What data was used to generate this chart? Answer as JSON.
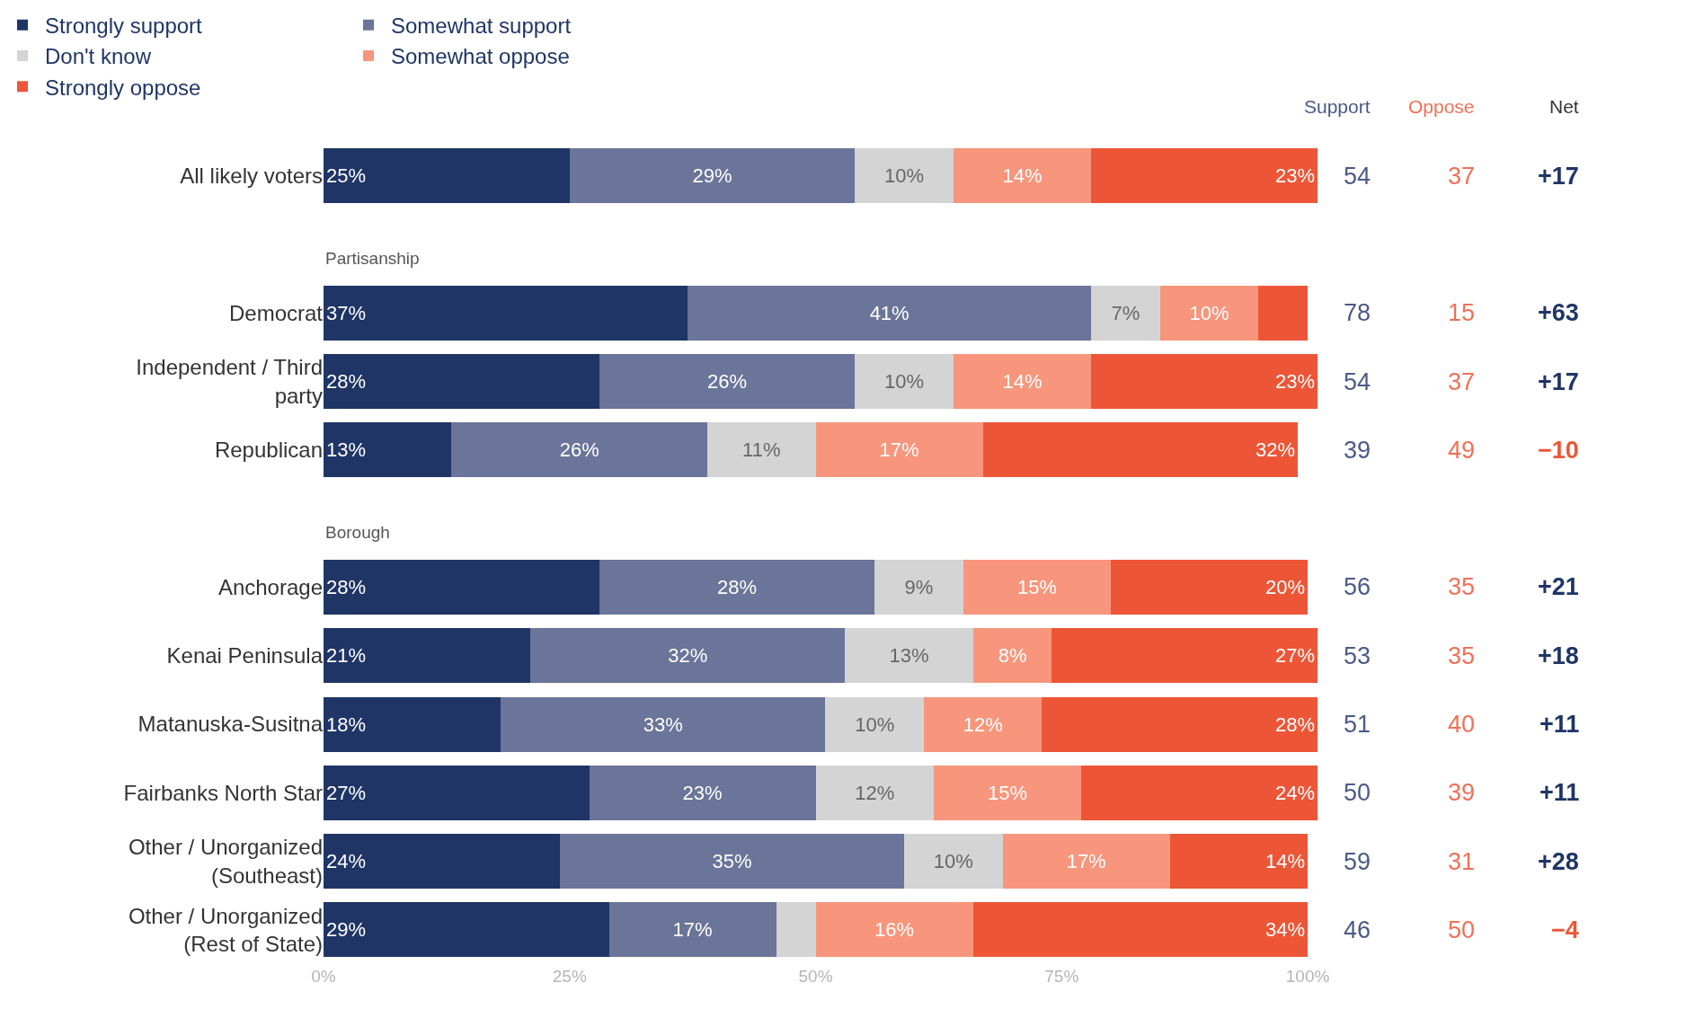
{
  "chart_data": {
    "type": "bar",
    "orientation": "horizontal",
    "stacked": true,
    "legend": "top",
    "categories": [
      "All likely voters",
      "Partisanship",
      "Democrat",
      "Independent / Third party",
      "Republican",
      "Borough",
      "Anchorage",
      "Kenai Peninsula",
      "Matanuska-Susitna",
      "Fairbanks North Star",
      "Other / Unorganized (Southeast)",
      "Other / Unorganized (Rest of State)"
    ],
    "series": [
      {
        "name": "Strongly support",
        "color": "#1f3566",
        "values": [
          25,
          null,
          37,
          28,
          13,
          null,
          28,
          21,
          18,
          27,
          24,
          29
        ],
        "value_labels": [
          "25%",
          null,
          "37%",
          "28%",
          "13%",
          null,
          "28%",
          "21%",
          "18%",
          "27%",
          "24%",
          "29%"
        ]
      },
      {
        "name": "Somewhat support",
        "color": "#6b7599",
        "values": [
          29,
          null,
          41,
          26,
          26,
          null,
          28,
          32,
          33,
          23,
          35,
          17
        ],
        "value_labels": [
          "29%",
          null,
          "41%",
          "26%",
          "26%",
          null,
          "28%",
          "32%",
          "33%",
          "23%",
          "35%",
          "17%"
        ]
      },
      {
        "name": "Don't know",
        "color": "#d4d4d4",
        "values": [
          10,
          null,
          7,
          10,
          11,
          null,
          9,
          13,
          10,
          12,
          10,
          4
        ],
        "value_labels": [
          "10%",
          null,
          "7%",
          "10%",
          "11%",
          null,
          "9%",
          "13%",
          "10%",
          "12%",
          "10%",
          null
        ]
      },
      {
        "name": "Somewhat oppose",
        "color": "#f7967c",
        "values": [
          14,
          null,
          10,
          14,
          17,
          null,
          15,
          8,
          12,
          15,
          17,
          16
        ],
        "value_labels": [
          "14%",
          null,
          "10%",
          "14%",
          "17%",
          null,
          "15%",
          "8%",
          "12%",
          "15%",
          "17%",
          "16%"
        ]
      },
      {
        "name": "Strongly oppose",
        "color": "#ec5637",
        "values": [
          23,
          null,
          5,
          23,
          32,
          null,
          20,
          27,
          28,
          24,
          14,
          34
        ],
        "value_labels": [
          "23%",
          null,
          null,
          "23%",
          "32%",
          null,
          "20%",
          "27%",
          "28%",
          "24%",
          "14%",
          "34%"
        ]
      }
    ],
    "xlim": [
      0,
      101
    ],
    "xticks": [
      {
        "value": 0,
        "label": "0%"
      },
      {
        "value": 25,
        "label": "25%"
      },
      {
        "value": 50,
        "label": "50%"
      },
      {
        "value": 75,
        "label": "75%"
      },
      {
        "value": 100,
        "label": "100%"
      }
    ],
    "annotations": [
      "Support",
      "Oppose",
      "Net",
      "54",
      "37",
      "+17",
      "78",
      "15",
      "+63",
      "54",
      "37",
      "+17",
      "39",
      "49",
      "−10",
      "56",
      "35",
      "+21",
      "53",
      "35",
      "+18",
      "51",
      "40",
      "+11",
      "50",
      "39",
      "+11",
      "59",
      "31",
      "+28",
      "46",
      "50",
      "−4"
    ]
  }
}
